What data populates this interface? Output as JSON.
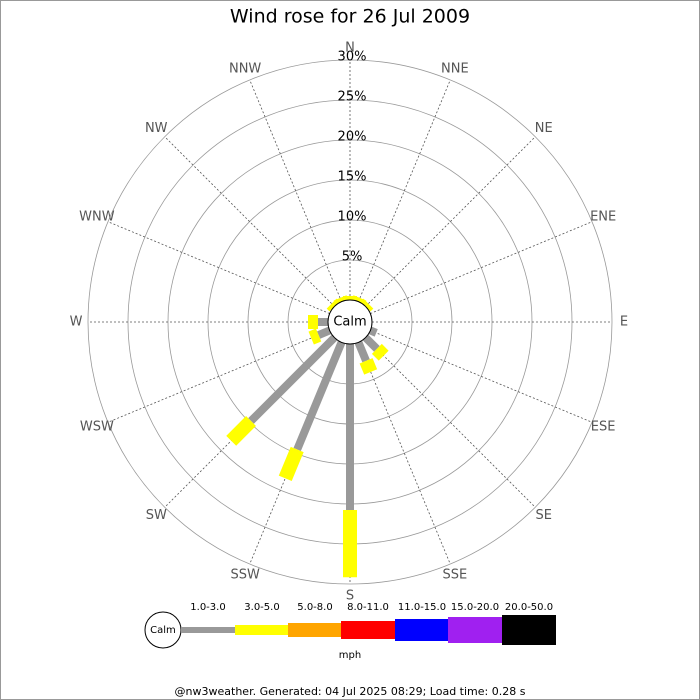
{
  "chart_data": {
    "type": "windrose",
    "title": "Wind rose for 26 Jul 2009",
    "categories": [
      "N",
      "NNE",
      "NE",
      "ENE",
      "E",
      "ESE",
      "SE",
      "SSE",
      "S",
      "SSW",
      "SW",
      "WSW",
      "W",
      "WNW",
      "NW",
      "NNW"
    ],
    "series": [
      {
        "name": "1.0-3.0",
        "color": "#999999",
        "values": [
          0,
          0,
          0,
          0,
          0,
          0.8,
          2,
          2.5,
          20.75,
          14.5,
          14.75,
          1.5,
          1.25,
          0,
          0,
          0
        ]
      },
      {
        "name": "3.0-5.0",
        "color": "#ffff00",
        "values": [
          0.5,
          0.5,
          0.5,
          0,
          0,
          0,
          1.2,
          1.5,
          8.4,
          3.9,
          3.5,
          1,
          1.25,
          0,
          0.5,
          0.5
        ]
      },
      {
        "name": "5.0-8.0",
        "color": "#ffa500",
        "values": [
          0,
          0,
          0,
          0,
          0,
          0,
          0,
          0,
          0,
          0,
          0,
          0,
          0,
          0,
          0,
          0
        ]
      },
      {
        "name": "8.0-11.0",
        "color": "#ff0000",
        "values": [
          0,
          0,
          0,
          0,
          0,
          0,
          0,
          0,
          0,
          0,
          0,
          0,
          0,
          0,
          0,
          0
        ]
      },
      {
        "name": "11.0-15.0",
        "color": "#0000ff",
        "values": [
          0,
          0,
          0,
          0,
          0,
          0,
          0,
          0,
          0,
          0,
          0,
          0,
          0,
          0,
          0,
          0
        ]
      },
      {
        "name": "15.0-20.0",
        "color": "#a020f0",
        "values": [
          0,
          0,
          0,
          0,
          0,
          0,
          0,
          0,
          0,
          0,
          0,
          0,
          0,
          0,
          0,
          0
        ]
      },
      {
        "name": "20.0-50.0",
        "color": "#000000",
        "values": [
          0,
          0,
          0,
          0,
          0,
          0,
          0,
          0,
          0,
          0,
          0,
          0,
          0,
          0,
          0,
          0
        ]
      }
    ],
    "ylim": [
      0,
      30
    ],
    "yticks": [
      {
        "value": 5,
        "label": "5%"
      },
      {
        "value": 10,
        "label": "10%"
      },
      {
        "value": 15,
        "label": "15%"
      },
      {
        "value": 20,
        "label": "20%"
      },
      {
        "value": 25,
        "label": "25%"
      },
      {
        "value": 30,
        "label": "30%"
      }
    ],
    "grid": true,
    "calm_label": "Calm",
    "legend_unit": "mph",
    "footer": "@nw3weather. Generated: 04 Jul 2025 08:29; Load time: 0.28 s"
  }
}
